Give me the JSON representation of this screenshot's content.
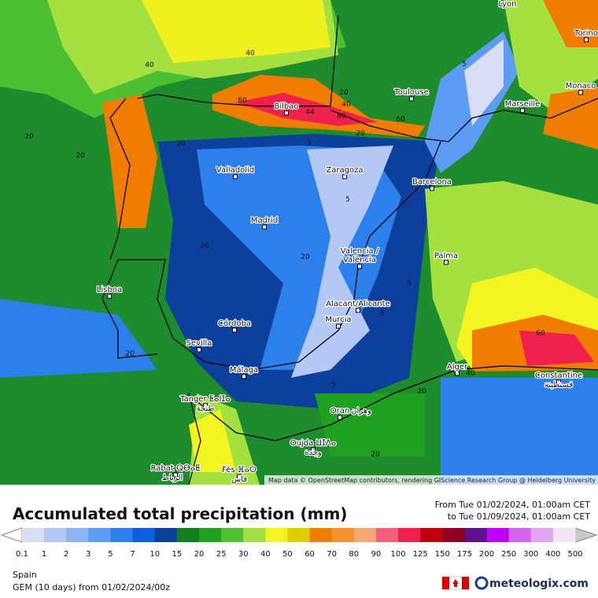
{
  "map": {
    "cities": [
      "Lyon",
      "Torino",
      "Monaco",
      "Marseille",
      "Toulouse",
      "Bilbao",
      "Zaragoza",
      "Barcelona",
      "Valladolid",
      "Madrid",
      "Valencia /",
      "València",
      "Palma",
      "Lisboa",
      "Alacant/Alicante",
      "Murcia",
      "Córdoba",
      "Sevilla",
      "Málaga",
      "Alger",
      "Constantine",
      "قسنطينة",
      "Tanger ⵟⴰⵏⵊⴰ",
      "طنجة",
      "Oran",
      "وهران",
      "Oujda ⵡⵊⴷⴰ",
      "وجدة",
      "Rabat ⵕⴱⴰⵟ",
      "الرباط",
      "Fès ⴼⴰⵙ",
      "فاس"
    ],
    "contour_labels": [
      "40",
      "40",
      "20",
      "20",
      "60",
      "44",
      "60",
      "80",
      "40",
      "20",
      "20",
      "5",
      "5",
      "5",
      "20",
      "20",
      "20",
      "5",
      "60",
      "40",
      "20",
      "5",
      "20",
      "20",
      "5"
    ],
    "attribution": "Map data © OpenStreetMap contributors, rendering GIScience Research Group @ Heidelberg University"
  },
  "footer": {
    "title": "Accumulated total precipitation (mm)",
    "from": "From Tue 01/02/2024, 01:00am CET",
    "to": "to Tue 01/09/2024, 01:00am CET",
    "region": "Spain",
    "model": "GEM (10 days) from 01/02/2024/00z",
    "brand": "meteologix.com"
  },
  "legend": {
    "ticks": [
      "0.1",
      "1",
      "2",
      "3",
      "5",
      "7",
      "10",
      "15",
      "20",
      "25",
      "30",
      "40",
      "50",
      "60",
      "70",
      "80",
      "90",
      "100",
      "125",
      "150",
      "175",
      "200",
      "250",
      "300",
      "400",
      "500"
    ],
    "colors": [
      "#d8dcf4",
      "#b4c8f4",
      "#8cb4f4",
      "#5c9cf4",
      "#2c80ec",
      "#0c60dc",
      "#0c409c",
      "#10801c",
      "#20a020",
      "#50c030",
      "#a0e040",
      "#f4f420",
      "#dcd000",
      "#f07c00",
      "#f49030",
      "#f4a874",
      "#f4607c",
      "#f0204c",
      "#c00010",
      "#900020",
      "#60108c",
      "#c000f0",
      "#d464f0",
      "#e4a4f4",
      "#f4e4fa"
    ]
  }
}
